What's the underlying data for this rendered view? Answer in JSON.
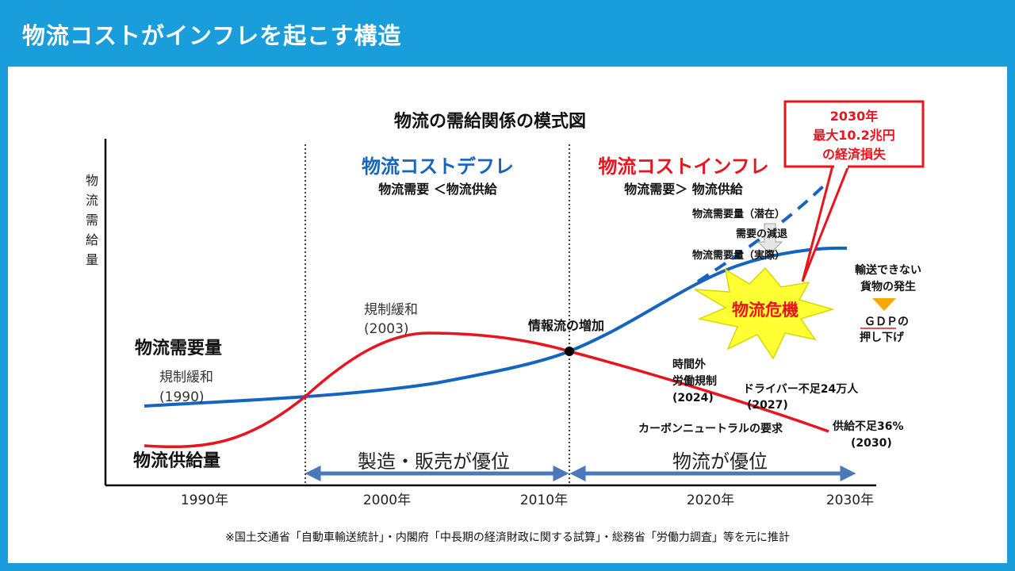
{
  "header": {
    "title": "物流コストがインフレを起こす構造"
  },
  "diagram": {
    "title": "物流の需給関係の模式図",
    "y_axis_label": [
      "物",
      "流",
      "需",
      "給",
      "量"
    ],
    "x_ticks": [
      "1990年",
      "2000年",
      "2010年",
      "2020年",
      "2030年"
    ],
    "labels": {
      "demand": "物流需要量",
      "supply": "物流供給量",
      "dereg1990_a": "規制緩和",
      "dereg1990_b": "(1990)",
      "dereg2003_a": "規制緩和",
      "dereg2003_b": "(2003)",
      "info_flow": "情報流の増加",
      "overtime_a": "時間外",
      "overtime_b": "労働規制",
      "overtime_c": "(2024)",
      "driver_a": "ドライバー不足24万人",
      "driver_b": "(2027)",
      "carbon": "カーボンニュートラルの要求",
      "shortage_a": "供給不足36%",
      "shortage_b": "(2030)",
      "demand_potential": "物流需要量（潜在）",
      "demand_decline": "需要の減退",
      "demand_actual": "物流需要量（実際）",
      "crisis": "物流危機",
      "undeliverable_a": "輸送できない",
      "undeliverable_b": "貨物の発生",
      "gdp_a": "ＧＤＰの",
      "gdp_b": "押し下げ"
    },
    "deflation": {
      "title": "物流コストデフレ",
      "sub": "物流需要 ＜物流供給"
    },
    "inflation": {
      "title": "物流コストインフレ",
      "sub": "物流需要＞ 物流供給"
    },
    "callout": {
      "line1": "2030年",
      "line2": "最大10.2兆円",
      "line3": "の経済損失"
    },
    "arrows": {
      "left": "製造・販売が優位",
      "right": "物流が優位"
    },
    "colors": {
      "demand": "#1565c0",
      "supply": "#e8141e",
      "accent_blue": "#1a9ddb",
      "crisis_fill": "#ffff33",
      "gdp_arrow": "#f5a800"
    }
  },
  "footer": {
    "note": "※国土交通省「自動車輸送統計」・内閣府「中長期の経済財政に関する試算」・総務省「労働力調査」等を元に推計"
  }
}
